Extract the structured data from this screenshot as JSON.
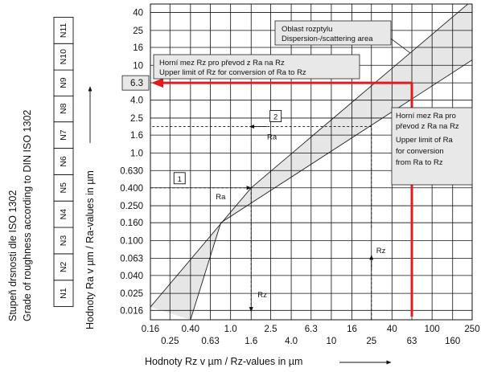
{
  "chart_data": {
    "type": "line",
    "title": "",
    "xlabel": "Hodnoty Rz v µm / Rz-values in µm",
    "ylabel": "Hodnoty Ra v µm / Ra-values in µm",
    "ylabel2_line1": "Stupeň drsnosti dle ISO 1302",
    "ylabel2_line2": "Grade of roughness according to DIN ISO 1302",
    "x_scale": "log",
    "y_scale": "log",
    "xlim": [
      0.16,
      250
    ],
    "ylim": [
      0.0125,
      50
    ],
    "grid": true,
    "x_ticks": [
      "0.16",
      "0.25",
      "0.40",
      "0.63",
      "1.0",
      "1.6",
      "2.5",
      "4.0",
      "6.3",
      "10",
      "16",
      "25",
      "40",
      "63",
      "100",
      "160",
      "250"
    ],
    "x_tick_values": [
      0.16,
      0.25,
      0.4,
      0.63,
      1.0,
      1.6,
      2.5,
      4.0,
      6.3,
      10,
      16,
      25,
      40,
      63,
      100,
      160,
      250
    ],
    "y_ticks": [
      "40",
      "25",
      "16",
      "10",
      "6.3",
      "4.0",
      "2.5",
      "1.6",
      "1.0",
      "0.630",
      "0.400",
      "0.250",
      "0.160",
      "0.100",
      "0.063",
      "0.040",
      "0.025",
      "0.016"
    ],
    "y_tick_values": [
      40,
      25,
      16,
      10,
      6.3,
      4.0,
      2.5,
      1.6,
      1.0,
      0.63,
      0.4,
      0.25,
      0.16,
      0.1,
      0.063,
      0.04,
      0.025,
      0.016
    ],
    "y_tick_highlight": "6.3",
    "band": {
      "upper": [
        [
          0.16,
          0.0175
        ],
        [
          1.6,
          0.4
        ],
        [
          250,
          55
        ]
      ],
      "lower": [
        [
          0.4,
          0.0125
        ],
        [
          0.8,
          0.16
        ],
        [
          250,
          11.5
        ]
      ],
      "fill": "#e6e6e6"
    },
    "grades": [
      "N1",
      "N2",
      "N3",
      "N4",
      "N5",
      "N6",
      "N7",
      "N8",
      "N9",
      "N10",
      "N11"
    ],
    "grade_values": [
      0.025,
      0.05,
      0.1,
      0.2,
      0.4,
      0.8,
      1.6,
      3.2,
      6.3,
      12.5,
      25
    ],
    "red_limit": {
      "rz": 63,
      "ra": 6.3,
      "color": "#e31b1b"
    },
    "examples": [
      {
        "marker": "1",
        "ra": 0.4,
        "rz": 1.6,
        "ra_label": "Ra",
        "rz_label": "Rz"
      },
      {
        "marker": "2",
        "ra": 2.0,
        "rz": 25,
        "ra_label": "Ra",
        "rz_label": "Rz"
      }
    ],
    "annotations": {
      "scatter_line1": "Oblast rozptylu",
      "scatter_line2": "Dispersion-/scattering area",
      "upper_rz_line1": "Horní mez Rz pro převod z Ra na Rz",
      "upper_rz_line2": "Upper limit of Rz for conversion of Ra to Rz",
      "upper_ra_lines": [
        "Horní mez Ra pro",
        "převod z Ra na Rz",
        "Upper limit of Ra",
        "for conversion",
        "from Ra to Rz"
      ]
    }
  }
}
